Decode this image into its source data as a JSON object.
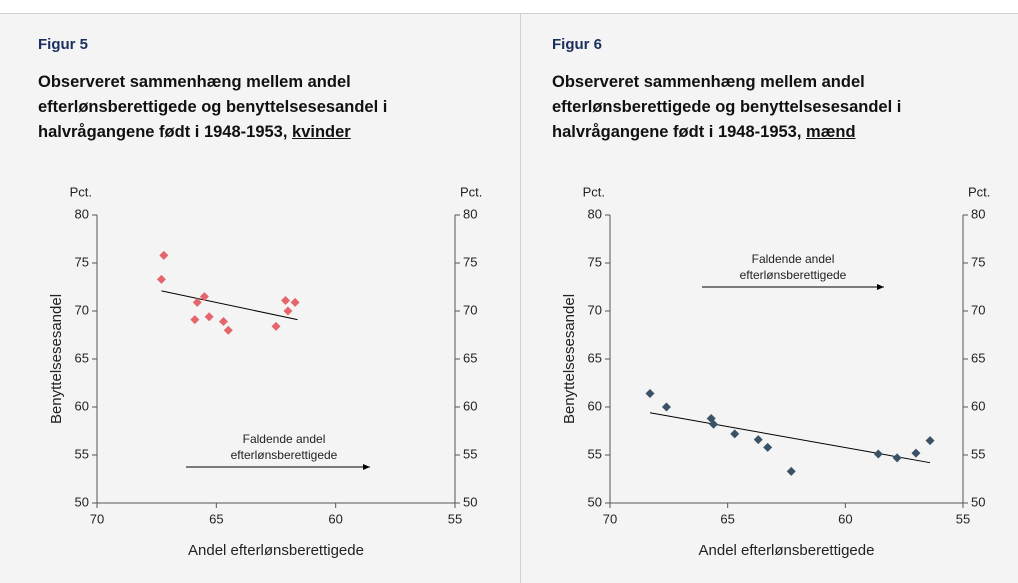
{
  "chart_data": [
    {
      "type": "scatter",
      "figure_label": "Figur 5",
      "title": "Observeret sammenhæng mellem andel efterlønsberettigede og benyttelsesesandel i halvrågangene født i 1948-1953,",
      "title_emphasis": "kvinder",
      "x_label": "Andel efterlønsberettigede",
      "y_label": "Benyttelsesesandel",
      "y_unit": "Pct.",
      "y2_unit": "Pct.",
      "annotation": [
        "Faldende andel",
        "efterlønsberettigede"
      ],
      "color": "#e5656d",
      "x": [
        67.3,
        67.2,
        65.9,
        65.8,
        65.5,
        65.3,
        64.7,
        64.5,
        62.5,
        62.1,
        62.0,
        61.7
      ],
      "values": [
        73.3,
        75.8,
        69.1,
        70.9,
        71.5,
        69.4,
        68.9,
        68.0,
        68.4,
        71.1,
        70.0,
        70.9
      ],
      "trendline": {
        "x": [
          67.3,
          61.6
        ],
        "y": [
          72.1,
          69.1
        ]
      },
      "xlim": [
        70,
        55
      ],
      "xticks": [
        70,
        65,
        60,
        55
      ],
      "ylim": [
        50,
        80
      ],
      "yticks": [
        50,
        55,
        60,
        65,
        70,
        75,
        80
      ],
      "y2lim": [
        50,
        80
      ],
      "y2ticks": [
        50,
        55,
        60,
        65,
        70,
        75,
        80
      ]
    },
    {
      "type": "scatter",
      "figure_label": "Figur 6",
      "title": "Observeret sammenhæng mellem andel efterlønsberettigede og benyttelsesesandel i halvrågangene født i 1948-1953,",
      "title_emphasis": "mænd",
      "x_label": "Andel efterlønsberettigede",
      "y_label": "Benyttelsesesandel",
      "y_unit": "Pct.",
      "y2_unit": "Pct.",
      "annotation": [
        "Faldende andel",
        "efterlønsberettigede"
      ],
      "color": "#3b5266",
      "x": [
        68.3,
        67.6,
        65.7,
        65.6,
        64.7,
        63.7,
        63.3,
        62.3,
        58.6,
        57.8,
        57.0,
        56.4
      ],
      "values": [
        61.4,
        60.0,
        58.8,
        58.2,
        57.2,
        56.6,
        55.8,
        53.3,
        55.1,
        54.7,
        55.2,
        56.5
      ],
      "trendline": {
        "x": [
          68.3,
          56.4
        ],
        "y": [
          59.4,
          54.2
        ]
      },
      "xlim": [
        70,
        55
      ],
      "xticks": [
        70,
        65,
        60,
        55
      ],
      "ylim": [
        50,
        80
      ],
      "yticks": [
        50,
        55,
        60,
        65,
        70,
        75,
        80
      ],
      "y2lim": [
        50,
        80
      ],
      "y2ticks": [
        50,
        55,
        60,
        65,
        70,
        75,
        80
      ]
    }
  ]
}
